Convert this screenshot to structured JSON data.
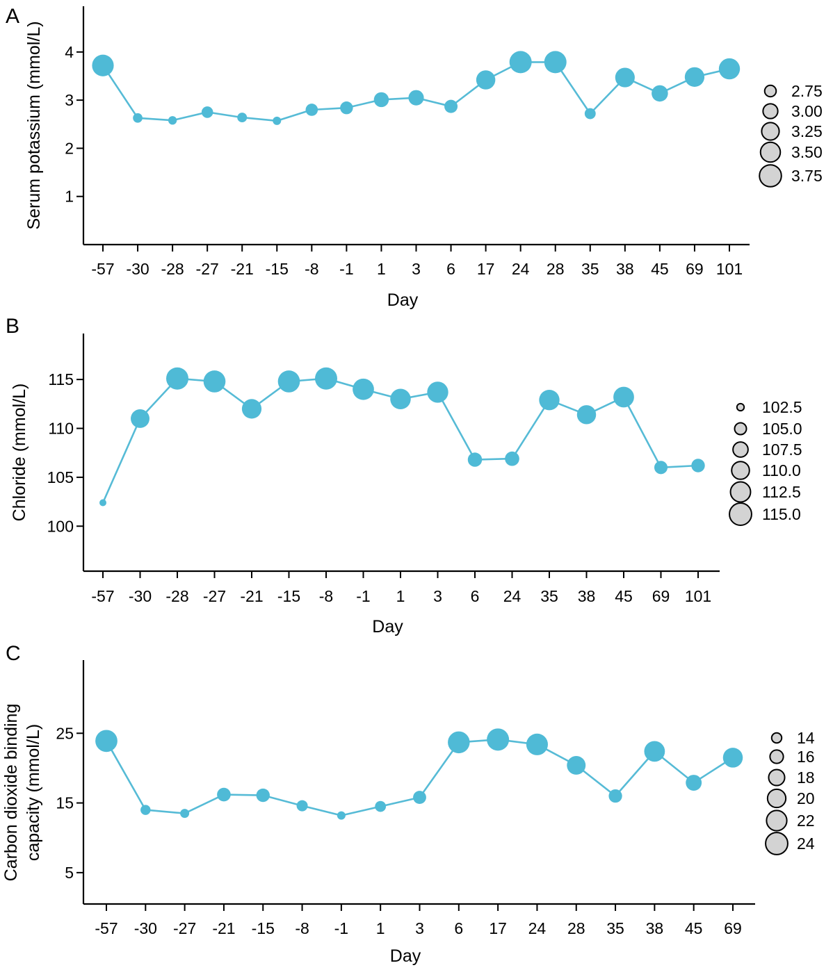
{
  "colors": {
    "line": "#56BBD6",
    "point": "#4FBAD6",
    "legend_fill": "#d3d3d3",
    "axis": "#000000"
  },
  "chart_data": [
    {
      "type": "scatter",
      "panel_label": "A",
      "ylabel": "Serum potassium (mmol/L)",
      "xlabel": "Day",
      "categories": [
        "-57",
        "-30",
        "-28",
        "-27",
        "-21",
        "-15",
        "-8",
        "-1",
        "1",
        "3",
        "6",
        "17",
        "24",
        "28",
        "35",
        "38",
        "45",
        "69",
        "101"
      ],
      "values": [
        3.72,
        2.63,
        2.58,
        2.75,
        2.64,
        2.57,
        2.8,
        2.84,
        3.01,
        3.05,
        2.87,
        3.42,
        3.79,
        3.79,
        2.72,
        3.47,
        3.14,
        3.48,
        3.65
      ],
      "ylim": [
        0,
        4.95
      ],
      "yticks": [
        1,
        2,
        3,
        4
      ],
      "legend": {
        "title": "",
        "values": [
          2.75,
          3.0,
          3.25,
          3.5,
          3.75
        ],
        "labels": [
          "2.75",
          "3.00",
          "3.25",
          "3.50",
          "3.75"
        ]
      },
      "size_range": [
        2.57,
        3.79
      ]
    },
    {
      "type": "scatter",
      "panel_label": "B",
      "ylabel": "Chloride (mmol/L)",
      "xlabel": "Day",
      "categories": [
        "-57",
        "-30",
        "-28",
        "-27",
        "-21",
        "-15",
        "-8",
        "-1",
        "1",
        "3",
        "6",
        "24",
        "35",
        "38",
        "45",
        "69",
        "101"
      ],
      "values": [
        102.4,
        111.0,
        115.1,
        114.8,
        112.0,
        114.8,
        115.1,
        114.0,
        113.0,
        113.7,
        106.8,
        106.9,
        112.9,
        111.4,
        113.2,
        106.0,
        106.2
      ],
      "ylim": [
        95.4,
        119.7
      ],
      "yticks": [
        100,
        105,
        110,
        115
      ],
      "legend": {
        "title": "",
        "values": [
          102.5,
          105.0,
          107.5,
          110.0,
          112.5,
          115.0
        ],
        "labels": [
          "102.5",
          "105.0",
          "107.5",
          "110.0",
          "112.5",
          "115.0"
        ]
      },
      "size_range": [
        102.4,
        115.1
      ]
    },
    {
      "type": "scatter",
      "panel_label": "C",
      "ylabel": "Carbon dioxide binding capacity (mmol/L)",
      "ylabel_lines": [
        "Carbon dioxide binding",
        "capacity (mmol/L)"
      ],
      "xlabel": "Day",
      "categories": [
        "-57",
        "-30",
        "-27",
        "-21",
        "-15",
        "-8",
        "-1",
        "1",
        "3",
        "6",
        "17",
        "24",
        "28",
        "35",
        "38",
        "45",
        "69"
      ],
      "values": [
        23.9,
        14.0,
        13.5,
        16.2,
        16.1,
        14.6,
        13.2,
        14.5,
        15.8,
        23.7,
        24.1,
        23.4,
        20.4,
        16.0,
        22.4,
        17.9,
        21.5
      ],
      "ylim": [
        0.5,
        35.5
      ],
      "yticks": [
        5,
        15,
        25
      ],
      "legend": {
        "title": "",
        "values": [
          14,
          16,
          18,
          20,
          22,
          24
        ],
        "labels": [
          "14",
          "16",
          "18",
          "20",
          "22",
          "24"
        ]
      },
      "size_range": [
        13.2,
        24.1
      ]
    }
  ]
}
